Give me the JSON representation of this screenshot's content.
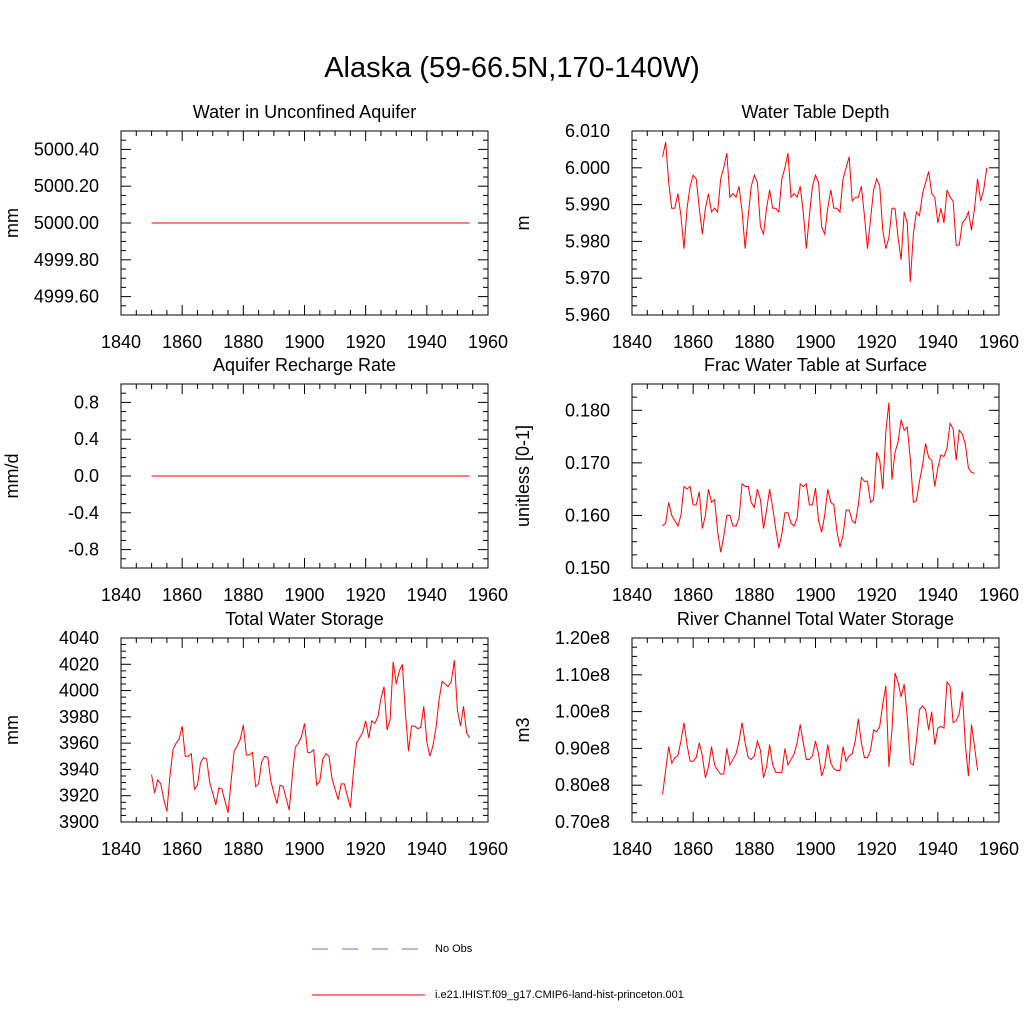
{
  "title": "Alaska (59-66.5N,170-140W)",
  "legend": {
    "items": [
      {
        "label": "No Obs",
        "color": "#6b6bd6",
        "style": "dashed"
      },
      {
        "label": "i.e21.IHIST.f09_g17.CMIP6-land-hist-princeton.001",
        "color": "#ff0000",
        "style": "solid"
      }
    ]
  },
  "chart_data": [
    {
      "type": "line",
      "title": "Water in Unconfined Aquifer",
      "ylabel": "mm",
      "xlim": [
        1840,
        1960
      ],
      "ylim": [
        4999.5,
        5000.5
      ],
      "xticks": [
        1840,
        1860,
        1880,
        1900,
        1920,
        1940,
        1960
      ],
      "yticks": [
        4999.6,
        4999.8,
        5000.0,
        5000.2,
        5000.4
      ],
      "ytick_labels": [
        "4999.60",
        "4999.80",
        "5000.00",
        "5000.20",
        "5000.40"
      ],
      "x_start": 1850,
      "series": [
        {
          "name": "i.e21.IHIST.f09_g17.CMIP6-land-hist-princeton.001",
          "color": "#ff0000",
          "x": [
            1850,
            1954
          ],
          "values": [
            5000.0,
            5000.0
          ]
        }
      ]
    },
    {
      "type": "line",
      "title": "Water Table Depth",
      "ylabel": "m",
      "xlim": [
        1840,
        1960
      ],
      "ylim": [
        5.96,
        6.01
      ],
      "xticks": [
        1840,
        1860,
        1880,
        1900,
        1920,
        1940,
        1960
      ],
      "yticks": [
        5.96,
        5.97,
        5.98,
        5.99,
        6.0,
        6.01
      ],
      "ytick_labels": [
        "5.960",
        "5.970",
        "5.980",
        "5.990",
        "6.000",
        "6.010"
      ],
      "x_start": 1850,
      "series": [
        {
          "name": "i.e21.IHIST.f09_g17.CMIP6-land-hist-princeton.001",
          "color": "#ff0000",
          "values": [
            6.003,
            6.007,
            5.996,
            5.989,
            5.989,
            5.993,
            5.987,
            5.978,
            5.989,
            5.995,
            5.998,
            5.997,
            5.989,
            5.982,
            5.989,
            5.993,
            5.988,
            5.989,
            5.988,
            5.997,
            6.0,
            6.004,
            5.992,
            5.993,
            5.992,
            5.995,
            5.988,
            5.978,
            5.987,
            5.995,
            5.998,
            5.996,
            5.984,
            5.982,
            5.989,
            5.994,
            5.989,
            5.989,
            5.988,
            5.997,
            6.0,
            6.004,
            5.992,
            5.993,
            5.992,
            5.995,
            5.988,
            5.978,
            5.987,
            5.995,
            5.998,
            5.996,
            5.984,
            5.982,
            5.989,
            5.994,
            5.989,
            5.989,
            5.988,
            5.997,
            6.0,
            6.003,
            5.991,
            5.992,
            5.992,
            5.995,
            5.987,
            5.978,
            5.986,
            5.994,
            5.997,
            5.995,
            5.983,
            5.978,
            5.981,
            5.989,
            5.989,
            5.981,
            5.975,
            5.988,
            5.985,
            5.969,
            5.982,
            5.988,
            5.987,
            5.993,
            5.996,
            5.999,
            5.993,
            5.992,
            5.985,
            5.989,
            5.985,
            5.994,
            5.992,
            5.991,
            5.979,
            5.979,
            5.985,
            5.986,
            5.988,
            5.983,
            5.989,
            5.997,
            5.991,
            5.994,
            6.0
          ]
        }
      ]
    },
    {
      "type": "line",
      "title": "Aquifer Recharge Rate",
      "ylabel": "mm/d",
      "xlim": [
        1840,
        1960
      ],
      "ylim": [
        -1.0,
        1.0
      ],
      "xticks": [
        1840,
        1860,
        1880,
        1900,
        1920,
        1940,
        1960
      ],
      "yticks": [
        -0.8,
        -0.4,
        0.0,
        0.4,
        0.8
      ],
      "ytick_labels": [
        "-0.8",
        "-0.4",
        "0.0",
        "0.4",
        "0.8"
      ],
      "x_start": 1850,
      "series": [
        {
          "name": "i.e21.IHIST.f09_g17.CMIP6-land-hist-princeton.001",
          "color": "#ff0000",
          "x": [
            1850,
            1954
          ],
          "values": [
            0.0,
            0.0
          ]
        }
      ]
    },
    {
      "type": "line",
      "title": "Frac Water Table at Surface",
      "ylabel": "unitless [0-1]",
      "xlim": [
        1840,
        1960
      ],
      "ylim": [
        0.15,
        0.185
      ],
      "xticks": [
        1840,
        1860,
        1880,
        1900,
        1920,
        1940,
        1960
      ],
      "yticks": [
        0.15,
        0.16,
        0.17,
        0.18
      ],
      "ytick_labels": [
        "0.150",
        "0.160",
        "0.170",
        "0.180"
      ],
      "x_start": 1850,
      "series": [
        {
          "name": "i.e21.IHIST.f09_g17.CMIP6-land-hist-princeton.001",
          "color": "#ff0000",
          "values": [
            0.158,
            0.1585,
            0.1625,
            0.16,
            0.159,
            0.158,
            0.16,
            0.1655,
            0.165,
            0.1655,
            0.162,
            0.162,
            0.1645,
            0.1575,
            0.16,
            0.165,
            0.1625,
            0.163,
            0.157,
            0.153,
            0.156,
            0.16,
            0.16,
            0.158,
            0.158,
            0.1595,
            0.166,
            0.1655,
            0.1655,
            0.1625,
            0.1615,
            0.165,
            0.163,
            0.1575,
            0.161,
            0.165,
            0.1615,
            0.1575,
            0.1538,
            0.1565,
            0.1605,
            0.1605,
            0.1585,
            0.158,
            0.1595,
            0.166,
            0.1655,
            0.166,
            0.162,
            0.162,
            0.1652,
            0.159,
            0.1568,
            0.16,
            0.165,
            0.1625,
            0.162,
            0.157,
            0.154,
            0.1562,
            0.161,
            0.161,
            0.159,
            0.1585,
            0.162,
            0.1672,
            0.1665,
            0.1665,
            0.1625,
            0.163,
            0.172,
            0.1705,
            0.165,
            0.176,
            0.1815,
            0.1668,
            0.172,
            0.174,
            0.1782,
            0.1762,
            0.1768,
            0.1708,
            0.1625,
            0.1628,
            0.1665,
            0.1695,
            0.1737,
            0.171,
            0.1705,
            0.1655,
            0.169,
            0.1715,
            0.1712,
            0.1728,
            0.1775,
            0.1765,
            0.1705,
            0.1762,
            0.1755,
            0.1735,
            0.169,
            0.1682,
            0.168
          ]
        }
      ]
    },
    {
      "type": "line",
      "title": "Total Water Storage",
      "ylabel": "mm",
      "xlim": [
        1840,
        1960
      ],
      "ylim": [
        3900,
        4040
      ],
      "xticks": [
        1840,
        1860,
        1880,
        1900,
        1920,
        1940,
        1960
      ],
      "yticks": [
        3900,
        3920,
        3940,
        3960,
        3980,
        4000,
        4020,
        4040
      ],
      "ytick_labels": [
        "3900",
        "3920",
        "3940",
        "3960",
        "3980",
        "4000",
        "4020",
        "4040"
      ],
      "x_start": 1850,
      "series": [
        {
          "name": "i.e21.IHIST.f09_g17.CMIP6-land-hist-princeton.001",
          "color": "#ff0000",
          "values": [
            3936,
            3922,
            3932,
            3929,
            3917,
            3908,
            3935,
            3955,
            3960,
            3963,
            3973,
            3950,
            3950,
            3952,
            3925,
            3928,
            3945,
            3949,
            3948,
            3930,
            3922,
            3913,
            3926,
            3925,
            3916,
            3907,
            3931,
            3954,
            3958,
            3963,
            3974,
            3951,
            3951,
            3953,
            3927,
            3929,
            3946,
            3950,
            3949,
            3931,
            3922,
            3914,
            3928,
            3927,
            3918,
            3909,
            3935,
            3957,
            3960,
            3965,
            3975,
            3953,
            3953,
            3955,
            3928,
            3931,
            3948,
            3952,
            3950,
            3933,
            3925,
            3917,
            3929,
            3929,
            3920,
            3911,
            3938,
            3960,
            3964,
            3968,
            3977,
            3964,
            3977,
            3975,
            3980,
            3994,
            4003,
            3970,
            3978,
            4022,
            4005,
            4015,
            4020,
            3983,
            3954,
            3973,
            3973,
            3971,
            3972,
            3988,
            3961,
            3950,
            3958,
            3972,
            3993,
            4007,
            4005,
            4003,
            4007,
            4023,
            3985,
            3973,
            3988,
            3968,
            3964
          ]
        }
      ]
    },
    {
      "type": "line",
      "title": "River Channel Total Water Storage",
      "ylabel": "m3",
      "xlim": [
        1840,
        1960
      ],
      "ylim": [
        70000000,
        120000000
      ],
      "xticks": [
        1840,
        1860,
        1880,
        1900,
        1920,
        1940,
        1960
      ],
      "yticks": [
        70000000,
        80000000,
        90000000,
        100000000,
        110000000,
        120000000
      ],
      "ytick_labels": [
        "0.70e8",
        "0.80e8",
        "0.90e8",
        "1.00e8",
        "1.10e8",
        "1.20e8"
      ],
      "x_start": 1850,
      "series": [
        {
          "name": "i.e21.IHIST.f09_g17.CMIP6-land-hist-princeton.001",
          "color": "#ff0000",
          "values": [
            77500000,
            84000000,
            90500000,
            86000000,
            87500000,
            88000000,
            92000000,
            97000000,
            91000000,
            86500000,
            86500000,
            87500000,
            91500000,
            88000000,
            82000000,
            85000000,
            90500000,
            85500000,
            84000000,
            83000000,
            83000000,
            90000000,
            85500000,
            87000000,
            88500000,
            92000000,
            97000000,
            91500000,
            87500000,
            87000000,
            88000000,
            92000000,
            89500000,
            82000000,
            85000000,
            91000000,
            85500000,
            83500000,
            83500000,
            83500000,
            90000000,
            85500000,
            87000000,
            88500000,
            91500000,
            96500000,
            91500000,
            87000000,
            87000000,
            88000000,
            92000000,
            88500000,
            82500000,
            85000000,
            91000000,
            86000000,
            84500000,
            84000000,
            84000000,
            90500000,
            86500000,
            88000000,
            88500000,
            92000000,
            98000000,
            91500000,
            87500000,
            87500000,
            89500000,
            95000000,
            94500000,
            96000000,
            102000000,
            107000000,
            85000000,
            95000000,
            110500000,
            108000000,
            104000000,
            107500000,
            98500000,
            86000000,
            85500000,
            92000000,
            100500000,
            101500000,
            100500000,
            95000000,
            100000000,
            91000000,
            95500000,
            96000000,
            95500000,
            108000000,
            107000000,
            97000000,
            97500000,
            99500000,
            105500000,
            91000000,
            82500000,
            96500000,
            90500000,
            84000000
          ]
        }
      ]
    }
  ]
}
